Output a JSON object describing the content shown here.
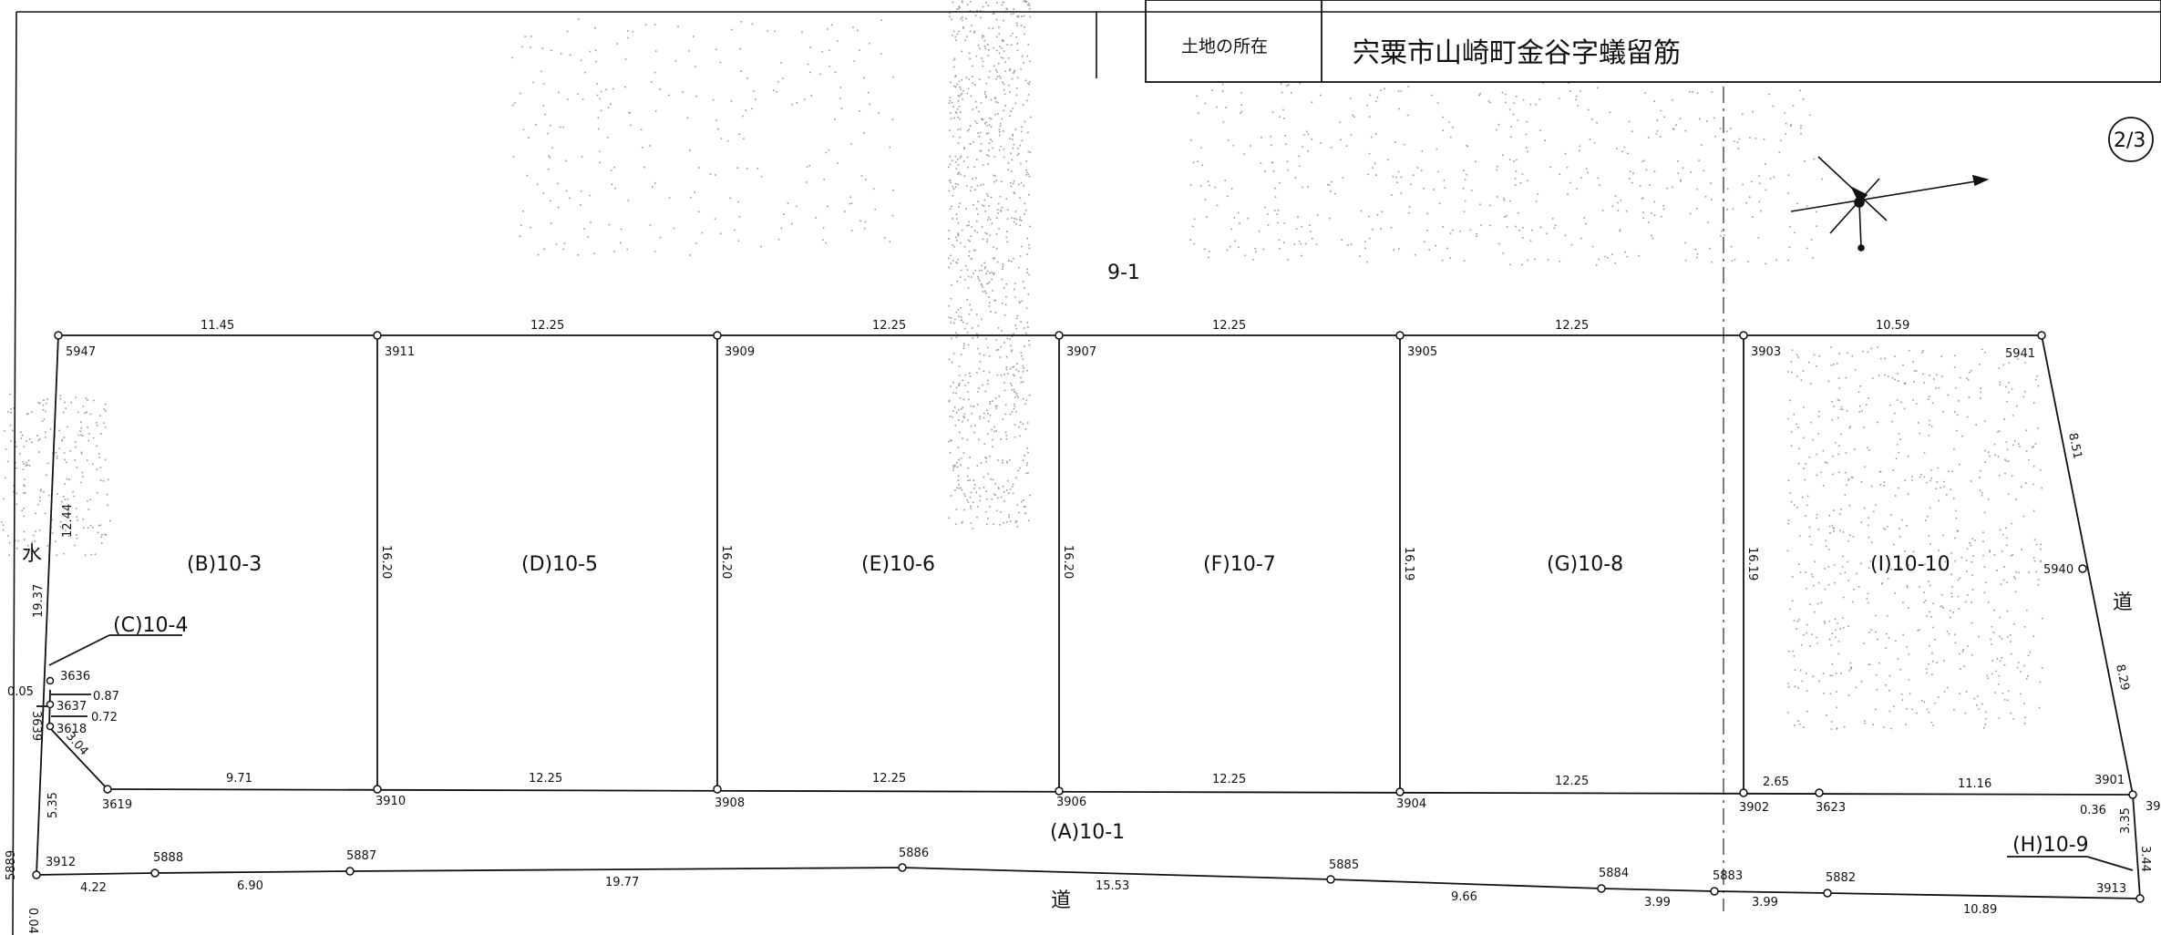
{
  "header": {
    "location_label": "土地の所在",
    "location_value": "宍粟市山崎町金谷字蟻留筋"
  },
  "page_number": "2/3",
  "north_arrow": {
    "icon": "compass-rose-icon"
  },
  "parcels": {
    "north": "9-1",
    "B": "(B)10-3",
    "C": "(C)10-4",
    "D": "(D)10-5",
    "E": "(E)10-6",
    "F": "(F)10-7",
    "G": "(G)10-8",
    "I": "(I)10-10",
    "A": "(A)10-1",
    "H": "(H)10-9"
  },
  "roads": {
    "water_left": "水",
    "road_right": "道",
    "road_bottom": "道"
  },
  "points": {
    "p5947": "5947",
    "p3911": "3911",
    "p3909": "3909",
    "p3907": "3907",
    "p3905": "3905",
    "p3903": "3903",
    "p5941": "5941",
    "p5940": "5940",
    "p3636": "3636",
    "p3637": "3637",
    "p3618": "3618",
    "p3639": "3639",
    "p3619": "3619",
    "p3910": "3910",
    "p3908": "3908",
    "p3906": "3906",
    "p3904": "3904",
    "p3902": "3902",
    "p3623": "3623",
    "p3901": "3901",
    "p3912": "3912",
    "p5888": "5888",
    "p5887": "5887",
    "p5886": "5886",
    "p5885": "5885",
    "p5884": "5884",
    "p5883": "5883",
    "p5882": "5882",
    "p3913": "3913",
    "p5889": "5889",
    "p39": "39"
  },
  "dimensions": {
    "top_1": "11.45",
    "top_2": "12.25",
    "top_3": "12.25",
    "top_4": "12.25",
    "top_5": "12.25",
    "top_6": "10.59",
    "mid_1": "9.71",
    "mid_2": "12.25",
    "mid_3": "12.25",
    "mid_4": "12.25",
    "mid_5": "12.25",
    "mid_6": "2.65",
    "mid_7": "11.16",
    "v_1": "16.20",
    "v_2": "16.20",
    "v_3": "16.20",
    "v_4": "16.19",
    "v_5": "16.19",
    "left_1": "12.44",
    "left_2": "19.37",
    "left_3": "5.35",
    "right_1": "8.51",
    "right_2": "8.29",
    "right_3": "3.35",
    "right_4": "3.44",
    "small_1": "0.87",
    "small_2": "0.72",
    "small_3": "0.05",
    "small_4": "3.04",
    "small_5": "0.36",
    "small_6": "0.04",
    "bot_1": "4.22",
    "bot_2": "6.90",
    "bot_3": "19.77",
    "bot_4": "15.53",
    "bot_5": "9.66",
    "bot_6": "3.99",
    "bot_7": "3.99",
    "bot_8": "10.89"
  },
  "colors": {
    "line": "#111111",
    "stipple": "#9a9a9a"
  }
}
